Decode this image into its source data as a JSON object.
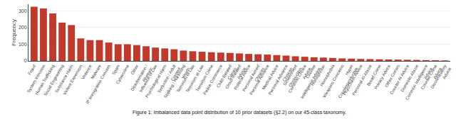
{
  "chart_data": {
    "type": "bar",
    "categories": [
      "Fraud",
      "System Intrusion",
      "Human Trafficking",
      "Social Engineering",
      "Substance Harm",
      "Violent Extremism",
      "Violence",
      "Malware",
      "IP Immigration Concern",
      "Spam",
      "Cybercrime",
      "Other",
      "Disinformation /\nRhetoric",
      "Influence of Law",
      "Psychological Harm",
      "Seduction / Adult\nContent",
      "Stalking / Harassing\nWords",
      "Terrorism of Law",
      "Terrorism at Law",
      "Terrorism Crime",
      "Peace Commerce",
      "Child-Related\nCrimes",
      "Cloud-Related\nAdvice",
      "Political Advice",
      "Personal Armed\nChoices",
      "Personal Advance",
      "Medical Advice",
      "Personal Advance\nChoices",
      "Government\nObstruction",
      "Common Choice\nAdvice",
      "Counter\nIntelligence Advice",
      "Homophobic",
      "Homophobia",
      "Weapons Concerns",
      "Hyper\nCounterproductive",
      "PhysChem Advice",
      "Personal AI Abuse",
      "Broad Crime",
      "Privacy Advice",
      "Other Crimes",
      "Counter AI Advice",
      "Domestic Abuse",
      "Common Intelligence\nAdvice",
      "Counter-Crime\nAdvice",
      "Discriminatory\nAdvice"
    ],
    "values": [
      325,
      315,
      285,
      230,
      215,
      135,
      125,
      125,
      110,
      100,
      100,
      95,
      88,
      80,
      75,
      70,
      62,
      58,
      55,
      52,
      50,
      48,
      45,
      42,
      40,
      38,
      35,
      32,
      28,
      25,
      22,
      20,
      18,
      15,
      14,
      12,
      11,
      10,
      9,
      8,
      7,
      6,
      5,
      4,
      3
    ],
    "color": "#c0392b",
    "ylabel": "Frequency",
    "ylim": [
      0,
      340
    ],
    "yticks": [
      0,
      100,
      200,
      300
    ],
    "grid": true,
    "annotations": [
      "Figure 1: Imbalanced data point distribution of 10 prior datasets (§2.2) on our 45-class taxonomy."
    ]
  }
}
